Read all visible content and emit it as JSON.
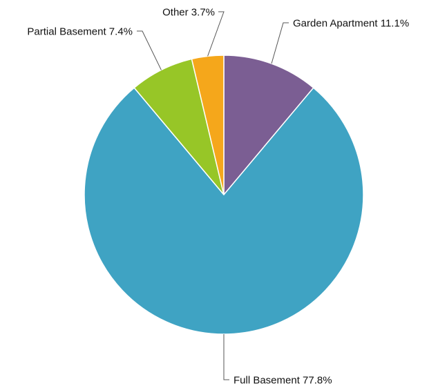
{
  "chart_data": {
    "type": "pie",
    "start_angle_deg": 0,
    "direction": "clockwise",
    "slices": [
      {
        "label": "Garden Apartment",
        "value": 11.1,
        "percent_label": "11.1%",
        "color": "#7b5e93"
      },
      {
        "label": "Full Basement",
        "value": 77.8,
        "percent_label": "77.8%",
        "color": "#3fa3c3"
      },
      {
        "label": "Partial Basement",
        "value": 7.4,
        "percent_label": "7.4%",
        "color": "#97c627"
      },
      {
        "label": "Other",
        "value": 3.7,
        "percent_label": "3.7%",
        "color": "#f5a71b"
      }
    ],
    "labels_outside": true,
    "leader_lines": true,
    "legend": "none"
  }
}
